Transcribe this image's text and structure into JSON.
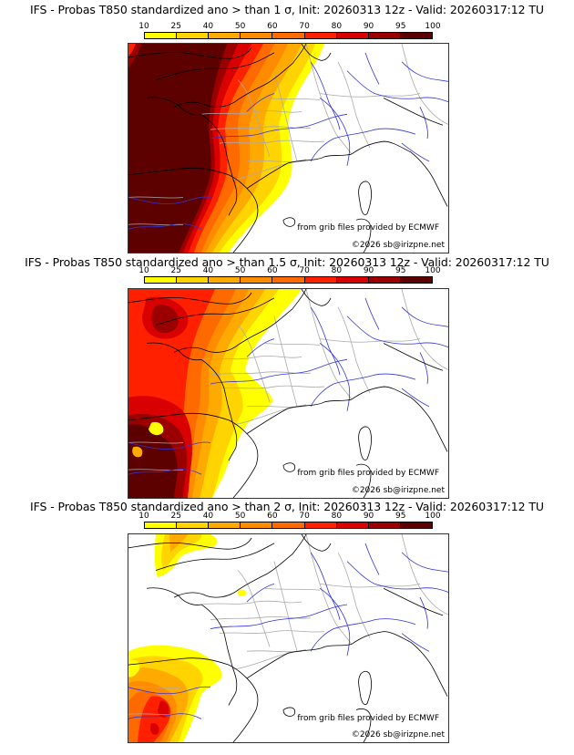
{
  "panels": [
    {
      "title": "IFS - Probas T850  standardized ano > than 1 σ, Init: 20260313 12z - Valid: 20260317:12 TU",
      "threshold_sigma": 1
    },
    {
      "title": "IFS - Probas T850  standardized ano > than 1.5 σ, Init: 20260313 12z - Valid: 20260317:12 TU",
      "threshold_sigma": 1.5
    },
    {
      "title": "IFS - Probas T850  standardized ano > than 2 σ, Init: 20260313 12z - Valid: 20260317:12 TU",
      "threshold_sigma": 2
    }
  ],
  "colorbar": {
    "ticks": [
      "10",
      "25",
      "40",
      "50",
      "60",
      "70",
      "80",
      "90",
      "95",
      "100"
    ],
    "colors": [
      "#ffff00",
      "#ffd400",
      "#ffaa00",
      "#ff8c00",
      "#ff6a00",
      "#ff2000",
      "#d80000",
      "#9a0000",
      "#5c0000"
    ]
  },
  "credits": {
    "source": "from grib files provided by ECMWF",
    "copyright": "©2026 sb@irizpne.net"
  },
  "map_colors": {
    "coast": "#000000",
    "rivers": "#3333dd",
    "borders": "#aaaaaa"
  }
}
